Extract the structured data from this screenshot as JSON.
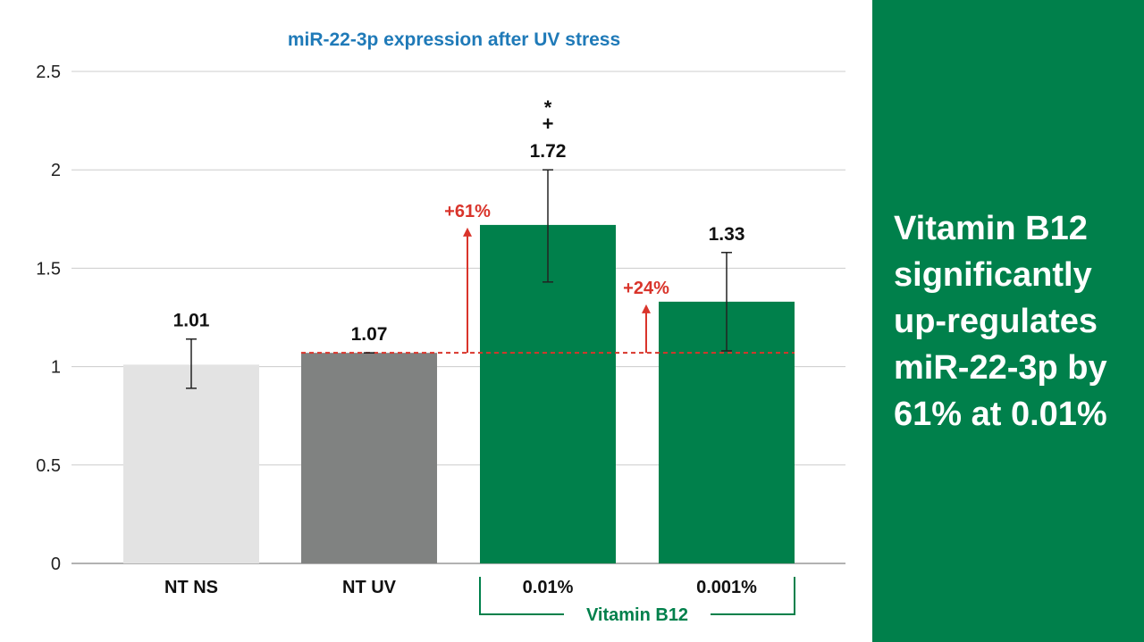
{
  "chart_data": {
    "type": "bar",
    "title": "miR-22-3p expression after UV stress",
    "xlabel": "",
    "ylabel": "",
    "ylim": [
      0,
      2.5
    ],
    "yticks": [
      "0",
      "0.5",
      "1",
      "1.5",
      "2",
      "2.5"
    ],
    "ytick_values": [
      0,
      0.5,
      1,
      1.5,
      2,
      2.5
    ],
    "grid": true,
    "categories": [
      "NT NS",
      "NT UV",
      "0.01%",
      "0.001%"
    ],
    "values": [
      1.01,
      1.07,
      1.72,
      1.33
    ],
    "value_labels": [
      "1.01",
      "1.07",
      "1.72",
      "1.33"
    ],
    "error_low": [
      0.89,
      1.07,
      1.43,
      1.08
    ],
    "error_high": [
      1.14,
      1.07,
      2.0,
      1.58
    ],
    "bar_colors": [
      "#e3e3e3",
      "#808281",
      "#00804b",
      "#00804b"
    ],
    "significance": [
      "",
      "",
      "*\n+",
      ""
    ],
    "significance_lines": [
      "*",
      "+"
    ],
    "reference_value": 1.07,
    "reference_color": "#d9342b",
    "annotations": [
      {
        "text": "+61%",
        "category": "0.01%"
      },
      {
        "text": "+24%",
        "category": "0.001%"
      }
    ],
    "group_label": "Vitamin B12",
    "group_categories": [
      "0.01%",
      "0.001%"
    ]
  },
  "colors": {
    "title": "#1f7ab8",
    "accent_green": "#00804b",
    "annotation_red": "#d9342b",
    "grid": "#cccccc"
  },
  "side_panel": {
    "text": "Vitamin B12 significantly up-regulates miR-22-3p by 61% at 0.01%"
  }
}
